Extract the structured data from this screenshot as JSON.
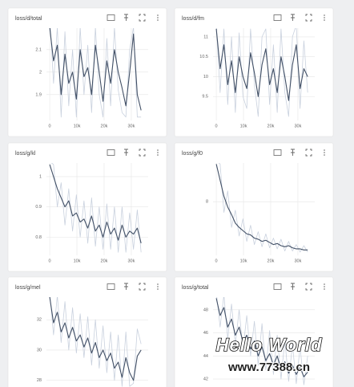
{
  "chart_data": [
    {
      "type": "line",
      "title": "loss/d/total",
      "x": [
        0,
        1400,
        2800,
        4200,
        5600,
        7000,
        8400,
        9800,
        11200,
        12600,
        14000,
        15400,
        16800,
        18200,
        19600,
        21000,
        22400,
        23800,
        25200,
        26600,
        28000,
        29400,
        30800,
        32200,
        33600
      ],
      "series": [
        {
          "color": "#c9d1de",
          "values": [
            2.25,
            1.95,
            2.2,
            1.8,
            2.18,
            1.85,
            2.1,
            1.8,
            2.2,
            1.9,
            2.12,
            1.82,
            2.2,
            1.9,
            1.8,
            2.15,
            1.85,
            2.2,
            1.92,
            1.82,
            1.8,
            2.1,
            2.2,
            1.8,
            1.8
          ]
        },
        {
          "color": "#425066",
          "values": [
            2.2,
            2.05,
            2.12,
            1.9,
            2.08,
            1.95,
            2.0,
            1.88,
            2.1,
            1.98,
            2.02,
            1.9,
            2.12,
            2.0,
            1.87,
            2.05,
            1.95,
            2.1,
            2.0,
            1.93,
            1.85,
            2.0,
            2.17,
            1.9,
            1.83
          ]
        }
      ],
      "xlim": [
        -1200,
        36200
      ],
      "xticks": [
        0,
        {
          "value": 10000,
          "label": "10k"
        },
        {
          "value": 20000,
          "label": "20k"
        },
        {
          "value": 30000,
          "label": "30k"
        }
      ],
      "ylim": [
        1.785,
        2.196
      ],
      "yticks": [
        2.1,
        2,
        1.9
      ],
      "grid": true
    },
    {
      "type": "line",
      "title": "loss/d/fm",
      "x": [
        0,
        1400,
        2800,
        4200,
        5600,
        7000,
        8400,
        9800,
        11200,
        12600,
        14000,
        15400,
        16800,
        18200,
        19600,
        21000,
        22400,
        23800,
        25200,
        26600,
        28000,
        29400,
        30800,
        32200,
        33600
      ],
      "series": [
        {
          "color": "#c9d1de",
          "values": [
            11.3,
            9.6,
            11.2,
            9.3,
            11.0,
            9.1,
            11.1,
            9.5,
            9.2,
            11.2,
            9.8,
            9.0,
            11.0,
            11.2,
            9.3,
            10.8,
            9.1,
            11.2,
            9.6,
            9.0,
            11.0,
            11.3,
            9.2,
            10.9,
            9.6
          ]
        },
        {
          "color": "#425066",
          "values": [
            11.2,
            10.2,
            10.8,
            9.8,
            10.4,
            9.6,
            10.5,
            10.0,
            9.7,
            10.6,
            10.1,
            9.5,
            10.3,
            10.7,
            9.8,
            10.2,
            9.6,
            10.5,
            10.0,
            9.4,
            10.3,
            10.8,
            9.7,
            10.2,
            10.0
          ]
        }
      ],
      "xlim": [
        -1200,
        36200
      ],
      "xticks": [
        0,
        {
          "value": 10000,
          "label": "10k"
        },
        {
          "value": 20000,
          "label": "20k"
        },
        {
          "value": 30000,
          "label": "30k"
        }
      ],
      "ylim": [
        8.9,
        11.22
      ],
      "yticks": [
        11,
        10.5,
        10,
        9.5
      ],
      "grid": true
    },
    {
      "type": "line",
      "title": "loss/g/kl",
      "x": [
        0,
        1400,
        2800,
        4200,
        5600,
        7000,
        8400,
        9800,
        11200,
        12600,
        14000,
        15400,
        16800,
        18200,
        19600,
        21000,
        22400,
        23800,
        25200,
        26600,
        28000,
        29400,
        30800,
        32200,
        33600
      ],
      "series": [
        {
          "color": "#c9d1de",
          "values": [
            1.05,
            1.04,
            0.9,
            0.98,
            0.84,
            0.96,
            0.82,
            0.94,
            0.8,
            0.92,
            0.78,
            0.93,
            0.77,
            0.9,
            0.76,
            0.91,
            0.76,
            0.9,
            0.75,
            0.9,
            0.75,
            0.88,
            0.76,
            0.89,
            0.75
          ]
        },
        {
          "color": "#425066",
          "values": [
            1.04,
            1.0,
            0.96,
            0.93,
            0.9,
            0.92,
            0.87,
            0.88,
            0.85,
            0.86,
            0.83,
            0.87,
            0.82,
            0.84,
            0.8,
            0.85,
            0.81,
            0.83,
            0.79,
            0.84,
            0.8,
            0.82,
            0.81,
            0.83,
            0.78
          ]
        }
      ],
      "xlim": [
        -1200,
        36200
      ],
      "xticks": [
        0,
        {
          "value": 10000,
          "label": "10k"
        },
        {
          "value": 20000,
          "label": "20k"
        },
        {
          "value": 30000,
          "label": "30k"
        }
      ],
      "ylim": [
        0.74,
        1.045
      ],
      "yticks": [
        1,
        0.9,
        0.8
      ],
      "grid": true
    },
    {
      "type": "line",
      "title": "loss/g/f0",
      "x": [
        0,
        1400,
        2800,
        4200,
        5600,
        7000,
        8400,
        9800,
        11200,
        12600,
        14000,
        15400,
        16800,
        18200,
        19600,
        21000,
        22400,
        23800,
        25200,
        26600,
        28000,
        29400,
        30800,
        32200,
        33600
      ],
      "series": [
        {
          "color": "#c9d1de",
          "values": [
            11.8,
            11.5,
            7,
            9,
            5.6,
            7.2,
            4.8,
            6.4,
            4.3,
            5.8,
            4.0,
            5.2,
            3.8,
            5.0,
            3.7,
            4.6,
            3.6,
            4.5,
            3.4,
            4.3,
            3.4,
            4.0,
            3.3,
            3.9,
            3.3
          ]
        },
        {
          "color": "#425066",
          "values": [
            11.5,
            10,
            8.5,
            7.5,
            6.8,
            6.0,
            5.6,
            5.3,
            5.0,
            4.9,
            4.6,
            4.5,
            4.3,
            4.4,
            4.2,
            4.0,
            4.1,
            3.9,
            3.8,
            3.9,
            3.7,
            3.6,
            3.6,
            3.5,
            3.5
          ]
        }
      ],
      "xlim": [
        -1200,
        36200
      ],
      "xticks": [
        0,
        {
          "value": 10000,
          "label": "10k"
        },
        {
          "value": 20000,
          "label": "20k"
        },
        {
          "value": 30000,
          "label": "30k"
        }
      ],
      "ylim": [
        3,
        11.6
      ],
      "yticks": [
        8
      ],
      "grid": true
    },
    {
      "type": "line",
      "title": "loss/g/mel",
      "x": [
        0,
        1400,
        2800,
        4200,
        5600,
        7000,
        8400,
        9800,
        11200,
        12600,
        14000,
        15400,
        16800,
        18200,
        19600,
        21000,
        22400,
        23800,
        25200,
        26600,
        28000,
        29400,
        30800,
        32200,
        33600
      ],
      "series": [
        {
          "color": "#c9d1de",
          "values": [
            33.8,
            31,
            33.6,
            30.5,
            33.2,
            30,
            32.8,
            29.8,
            32.4,
            29.5,
            32.2,
            29,
            32.0,
            28.8,
            31.6,
            28.5,
            31.2,
            28,
            31,
            27.6,
            31.2,
            27.6,
            27.8,
            31.4,
            30.4
          ]
        },
        {
          "color": "#425066",
          "values": [
            33.5,
            31.8,
            32.5,
            31.2,
            31.8,
            30.8,
            31.5,
            30.6,
            31.0,
            30.2,
            30.8,
            29.8,
            30.5,
            29.5,
            30.0,
            29.3,
            29.8,
            28.8,
            29.2,
            28.2,
            29.5,
            28.5,
            28.0,
            29.6,
            30.0
          ]
        }
      ],
      "xlim": [
        -1200,
        36200
      ],
      "ylim": [
        27.4,
        33.5
      ],
      "yticks": [
        32,
        30,
        28
      ],
      "grid": true
    },
    {
      "type": "line",
      "title": "loss/g/total",
      "x": [
        0,
        1400,
        2800,
        4200,
        5600,
        7000,
        8400,
        9800,
        11200,
        12600,
        14000,
        15400,
        16800,
        18200,
        19600,
        21000,
        22400,
        23800,
        25200,
        26600,
        28000,
        29400,
        30800,
        32200,
        33600
      ],
      "series": [
        {
          "color": "#c9d1de",
          "values": [
            49.5,
            46.5,
            49.3,
            45.5,
            48.5,
            45,
            48,
            44.5,
            47.5,
            44,
            47,
            43.2,
            46.8,
            42.8,
            46.2,
            42.4,
            45.8,
            42,
            45.4,
            41.8,
            45,
            41.6,
            44.8,
            41.5,
            44
          ]
        },
        {
          "color": "#425066",
          "values": [
            49.0,
            47.5,
            48.2,
            46.5,
            47.2,
            45.8,
            46.5,
            45.2,
            45.8,
            44.6,
            45.3,
            44.0,
            44.8,
            43.6,
            44.2,
            43.2,
            44.0,
            42.8,
            43.5,
            42.5,
            43.2,
            42.4,
            43.0,
            42.2,
            42.6
          ]
        }
      ],
      "xlim": [
        -1200,
        36200
      ],
      "ylim": [
        41.1,
        49.1
      ],
      "yticks": [
        48,
        46,
        44,
        42
      ],
      "grid": true
    }
  ],
  "watermark": {
    "title": "Hello World",
    "url": "www.77388.cn"
  }
}
